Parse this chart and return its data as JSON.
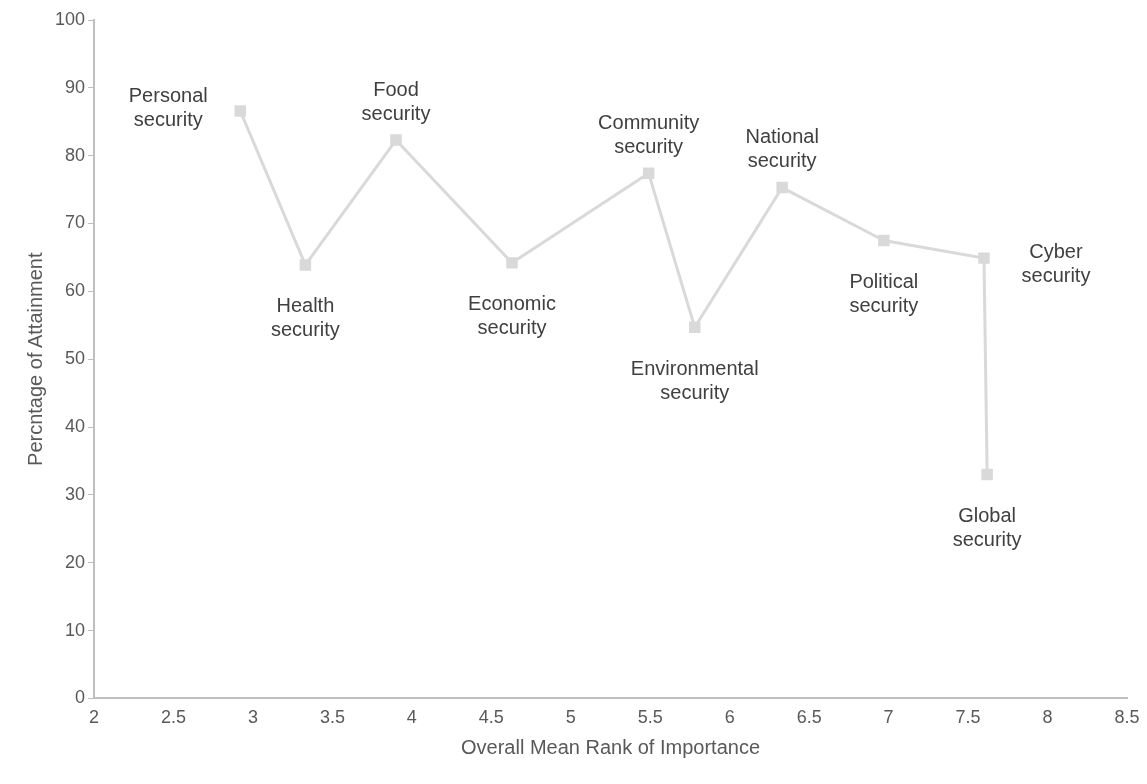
{
  "chart_data": {
    "type": "line",
    "xlabel": "Overall Mean Rank of Importance",
    "ylabel": "Percntage of Attainment",
    "xlim": [
      2,
      8.5
    ],
    "xticks": [
      2,
      2.5,
      3,
      3.5,
      4,
      4.5,
      5,
      5.5,
      6,
      6.5,
      7,
      7.5,
      8,
      8.5
    ],
    "ylim": [
      0,
      100
    ],
    "yticks": [
      0,
      10,
      20,
      30,
      40,
      50,
      60,
      70,
      80,
      90,
      100
    ],
    "grid": false,
    "legend": false,
    "marker": "square",
    "line_style": "solid",
    "series": [
      {
        "color": "#d9d9d9",
        "x": [
          2.92,
          3.33,
          3.9,
          4.63,
          5.49,
          5.78,
          6.33,
          6.97,
          7.6,
          7.62
        ],
        "values": [
          86.6,
          63.9,
          82.3,
          64.2,
          77.4,
          54.7,
          75.3,
          67.5,
          64.9,
          33.0
        ]
      }
    ],
    "annotations": [
      {
        "text": "Personal security",
        "x": 2.92,
        "y": 86.6
      },
      {
        "text": "Health security",
        "x": 3.33,
        "y": 63.9
      },
      {
        "text": "Food security",
        "x": 3.9,
        "y": 82.3
      },
      {
        "text": "Economic security",
        "x": 4.63,
        "y": 64.2
      },
      {
        "text": "Community security",
        "x": 5.49,
        "y": 77.4
      },
      {
        "text": "Environmental security",
        "x": 5.78,
        "y": 54.7
      },
      {
        "text": "National security",
        "x": 6.33,
        "y": 75.3
      },
      {
        "text": "Political security",
        "x": 6.97,
        "y": 67.5
      },
      {
        "text": "Cyber security",
        "x": 7.6,
        "y": 64.9
      },
      {
        "text": "Global security",
        "x": 7.62,
        "y": 33.0
      }
    ]
  }
}
